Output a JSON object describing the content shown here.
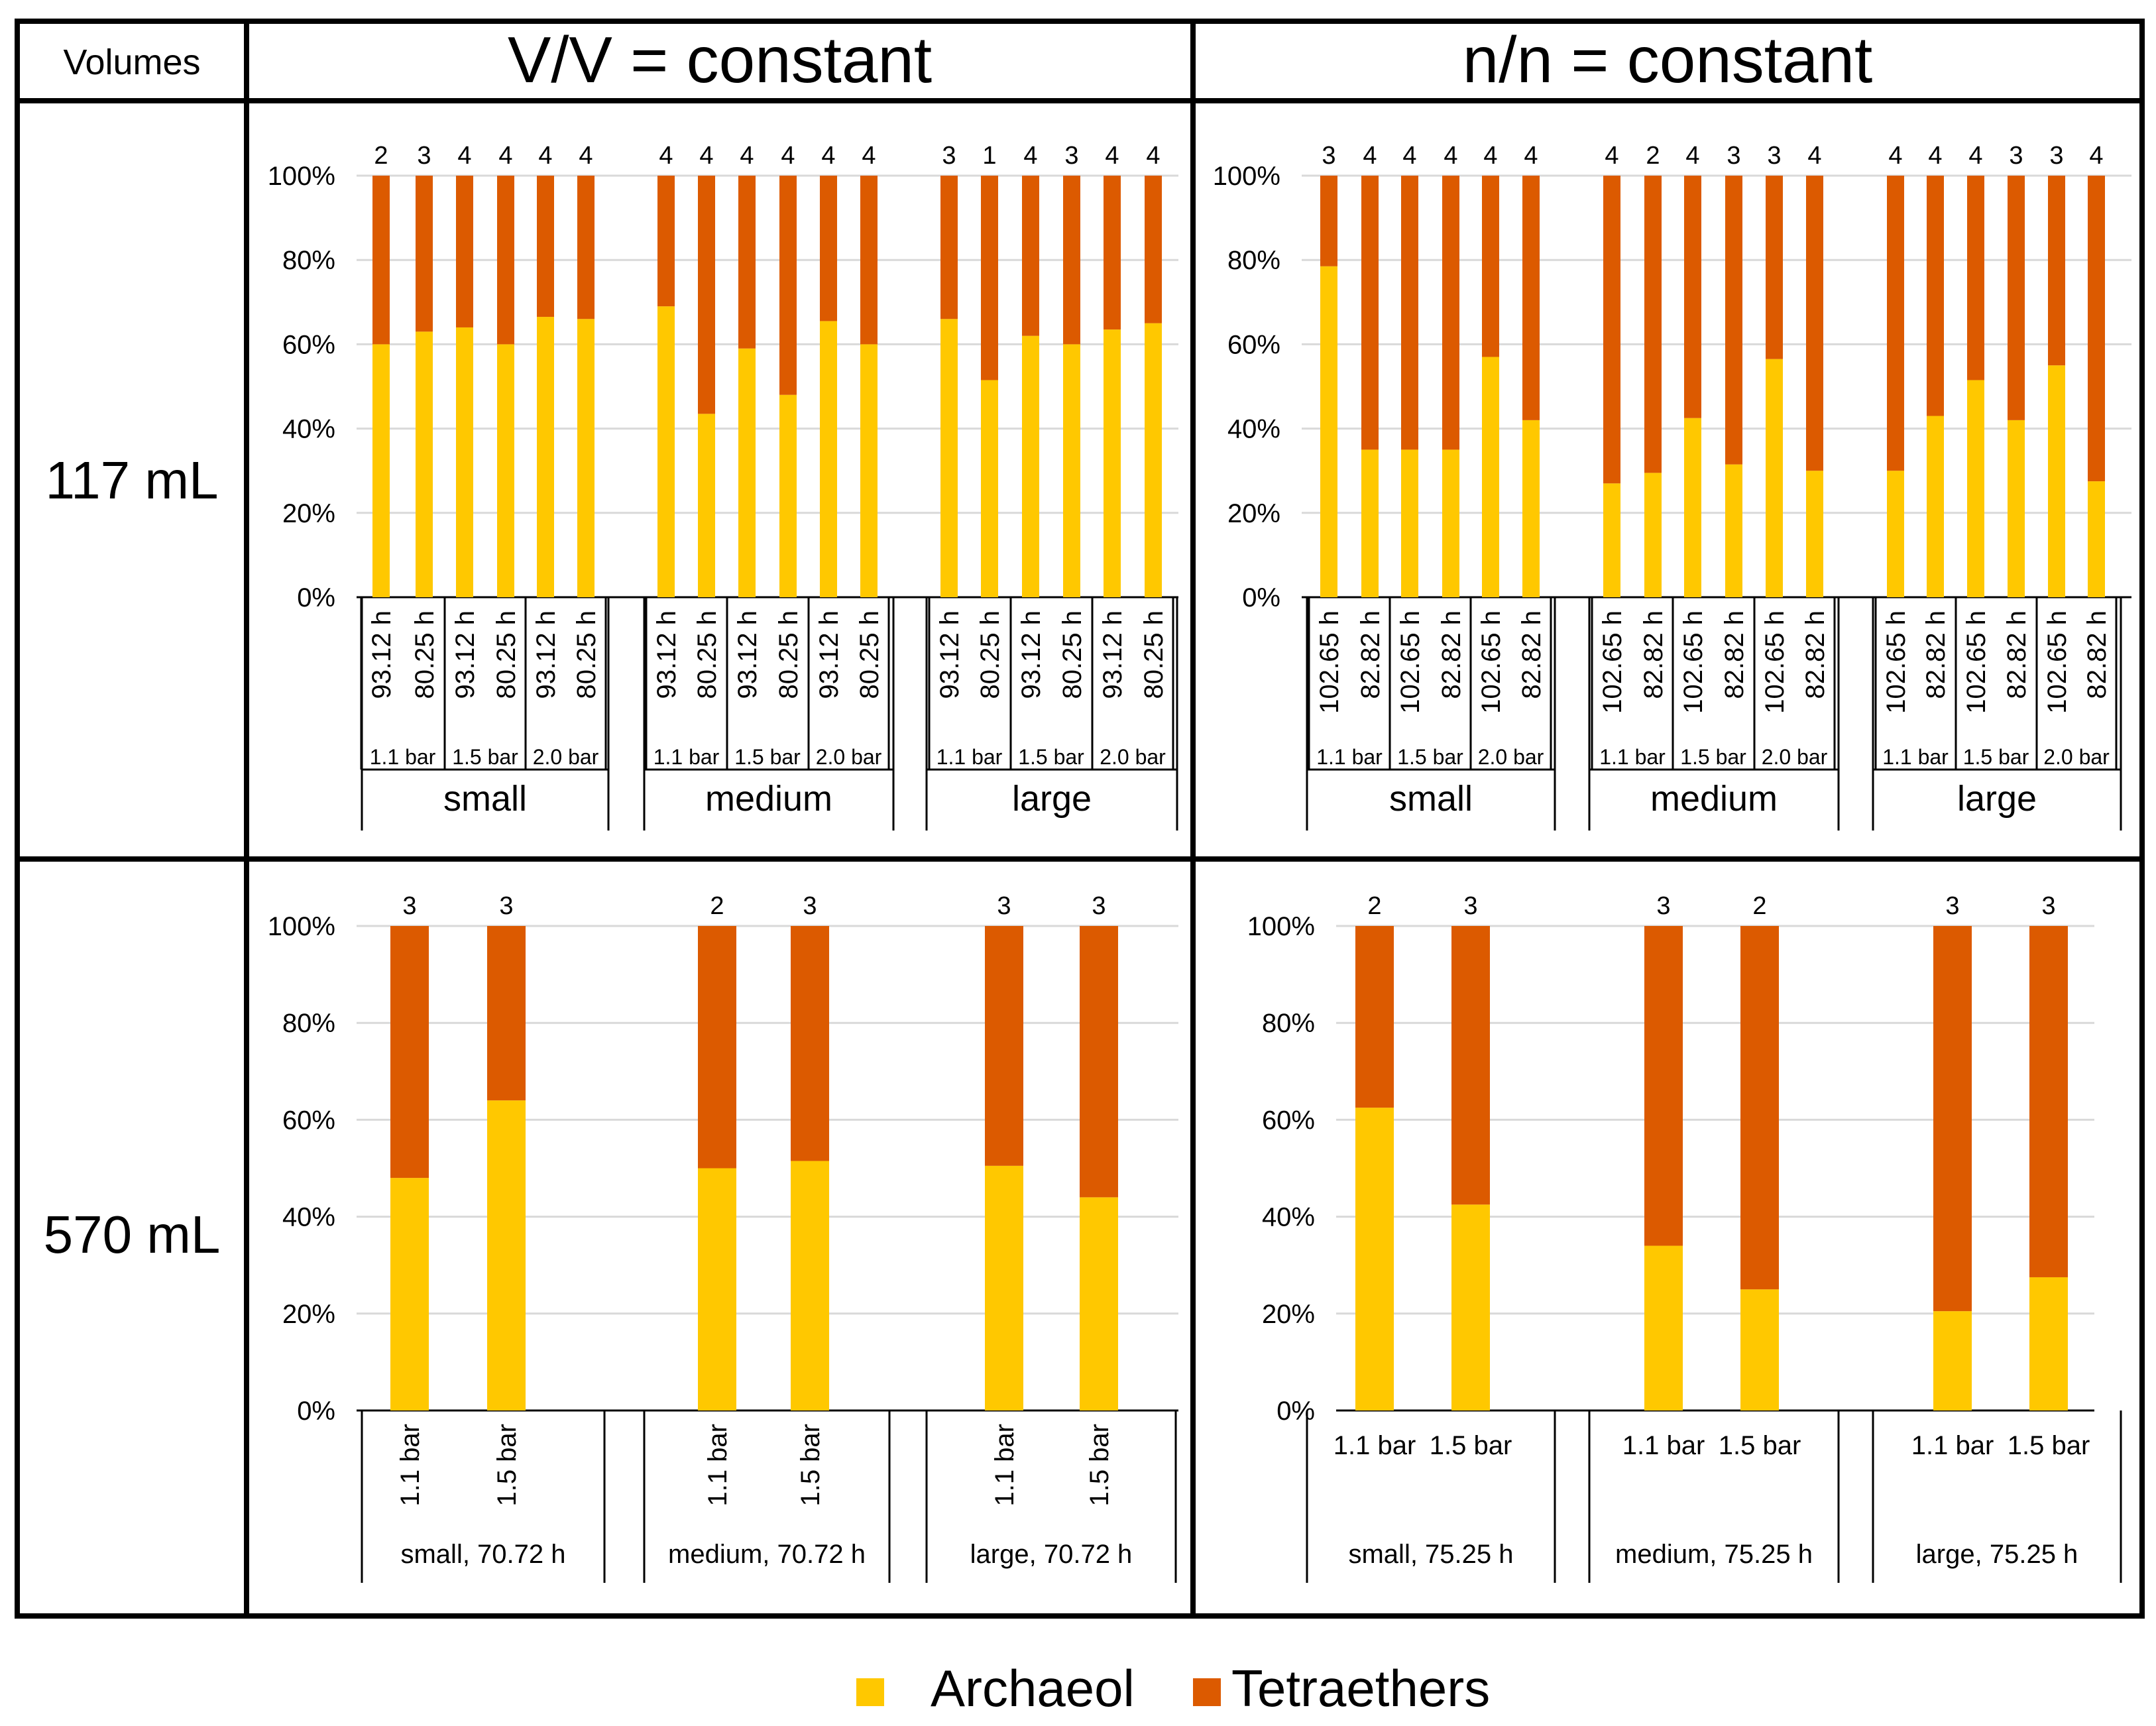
{
  "table": {
    "corner_label": "Volumes",
    "col_headers": [
      "V/V = constant",
      "n/n = constant"
    ],
    "row_headers": [
      "117 mL",
      "570 mL"
    ]
  },
  "legend": [
    {
      "label": "Archaeol",
      "color": "#FFC800"
    },
    {
      "label": "Tetraethers",
      "color": "#DC5A00"
    }
  ],
  "colors": {
    "archaeol": "#FFC800",
    "tetraethers": "#DC5A00",
    "grid": "#D9D9D9",
    "axis": "#000000"
  },
  "chart_data": [
    {
      "id": "vv-117",
      "type": "bar",
      "stacked": true,
      "title": "V/V = constant, 117 mL",
      "yticks": [
        "0%",
        "20%",
        "40%",
        "60%",
        "80%",
        "100%"
      ],
      "ylim": [
        0,
        100
      ],
      "series_names": [
        "Archaeol",
        "Tetraethers"
      ],
      "groups": [
        {
          "label": "small",
          "pressures": [
            "1.1 bar",
            "1.5 bar",
            "2.0 bar"
          ],
          "times": [
            "93.12 h",
            "80.25 h"
          ],
          "n": [
            "2",
            "3",
            "4",
            "4",
            "4",
            "4"
          ],
          "archaeol": [
            60,
            63,
            64,
            60,
            66.5,
            66
          ]
        },
        {
          "label": "medium",
          "pressures": [
            "1.1 bar",
            "1.5 bar",
            "2.0 bar"
          ],
          "times": [
            "93.12 h",
            "80.25 h"
          ],
          "n": [
            "4",
            "4",
            "4",
            "4",
            "4",
            "4"
          ],
          "archaeol": [
            69,
            43.5,
            59,
            48,
            65.5,
            60
          ]
        },
        {
          "label": "large",
          "pressures": [
            "1.1 bar",
            "1.5 bar",
            "2.0 bar"
          ],
          "times": [
            "93.12 h",
            "80.25 h"
          ],
          "n": [
            "3",
            "1",
            "4",
            "3",
            "4",
            "4"
          ],
          "archaeol": [
            66,
            51.5,
            62,
            60,
            63.5,
            65
          ]
        }
      ]
    },
    {
      "id": "nn-117",
      "type": "bar",
      "stacked": true,
      "title": "n/n = constant, 117 mL",
      "yticks": [
        "0%",
        "20%",
        "40%",
        "60%",
        "80%",
        "100%"
      ],
      "ylim": [
        0,
        100
      ],
      "series_names": [
        "Archaeol",
        "Tetraethers"
      ],
      "groups": [
        {
          "label": "small",
          "pressures": [
            "1.1 bar",
            "1.5 bar",
            "2.0 bar"
          ],
          "times": [
            "102.65 h",
            "82.82 h"
          ],
          "n": [
            "3",
            "4",
            "4",
            "4",
            "4",
            "4"
          ],
          "archaeol": [
            78.5,
            35,
            35,
            35,
            57,
            42
          ]
        },
        {
          "label": "medium",
          "pressures": [
            "1.1 bar",
            "1.5 bar",
            "2.0 bar"
          ],
          "times": [
            "102.65 h",
            "82.82 h"
          ],
          "n": [
            "4",
            "2",
            "4",
            "3",
            "3",
            "4"
          ],
          "archaeol": [
            27,
            29.5,
            42.5,
            31.5,
            56.5,
            30
          ]
        },
        {
          "label": "large",
          "pressures": [
            "1.1 bar",
            "1.5 bar",
            "2.0 bar"
          ],
          "times": [
            "102.65 h",
            "82.82 h"
          ],
          "n": [
            "4",
            "4",
            "4",
            "3",
            "3",
            "4"
          ],
          "archaeol": [
            30,
            43,
            51.5,
            42,
            55,
            27.5
          ]
        }
      ]
    },
    {
      "id": "vv-570",
      "type": "bar",
      "stacked": true,
      "title": "V/V = constant, 570 mL",
      "yticks": [
        "0%",
        "20%",
        "40%",
        "60%",
        "80%",
        "100%"
      ],
      "ylim": [
        0,
        100
      ],
      "series_names": [
        "Archaeol",
        "Tetraethers"
      ],
      "groups": [
        {
          "label": "small, 70.72 h",
          "categories": [
            "1.1 bar",
            "1.5 bar"
          ],
          "n": [
            "3",
            "3"
          ],
          "archaeol": [
            48,
            64
          ]
        },
        {
          "label": "medium, 70.72 h",
          "categories": [
            "1.1 bar",
            "1.5 bar"
          ],
          "n": [
            "2",
            "3"
          ],
          "archaeol": [
            50,
            51.5
          ]
        },
        {
          "label": "large, 70.72 h",
          "categories": [
            "1.1 bar",
            "1.5 bar"
          ],
          "n": [
            "3",
            "3"
          ],
          "archaeol": [
            50.5,
            44
          ]
        }
      ]
    },
    {
      "id": "nn-570",
      "type": "bar",
      "stacked": true,
      "title": "n/n = constant, 570 mL",
      "yticks": [
        "0%",
        "20%",
        "40%",
        "60%",
        "80%",
        "100%"
      ],
      "ylim": [
        0,
        100
      ],
      "series_names": [
        "Archaeol",
        "Tetraethers"
      ],
      "groups": [
        {
          "label": "small, 75.25 h",
          "categories": [
            "1.1 bar",
            "1.5 bar"
          ],
          "n": [
            "2",
            "3"
          ],
          "archaeol": [
            62.5,
            42.5
          ]
        },
        {
          "label": "medium, 75.25 h",
          "categories": [
            "1.1 bar",
            "1.5 bar"
          ],
          "n": [
            "3",
            "2"
          ],
          "archaeol": [
            34,
            25
          ]
        },
        {
          "label": "large, 75.25 h",
          "categories": [
            "1.1 bar",
            "1.5 bar"
          ],
          "n": [
            "3",
            "3"
          ],
          "archaeol": [
            20.5,
            27.5
          ]
        }
      ]
    }
  ]
}
